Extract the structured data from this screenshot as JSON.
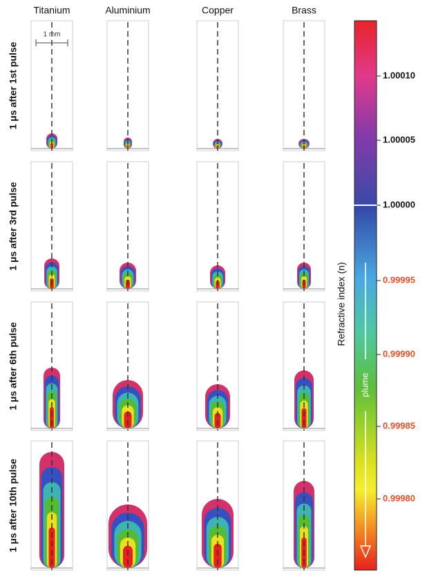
{
  "columns": [
    "Titanium",
    "Aluminium",
    "Copper",
    "Brass"
  ],
  "rows": [
    "1 μs after 1st pulse",
    "1 μs after 3rd pulse",
    "1 μs after 6th pulse",
    "1 μs after 10th pulse"
  ],
  "scale_bar": "1 mm",
  "colorbar": {
    "label": "Refractive index (n)",
    "arrow_label": "plume",
    "ticks": [
      "1.00010",
      "1.00005",
      "1.00000",
      "0.99995",
      "0.99990",
      "0.99985",
      "0.99980"
    ]
  }
}
